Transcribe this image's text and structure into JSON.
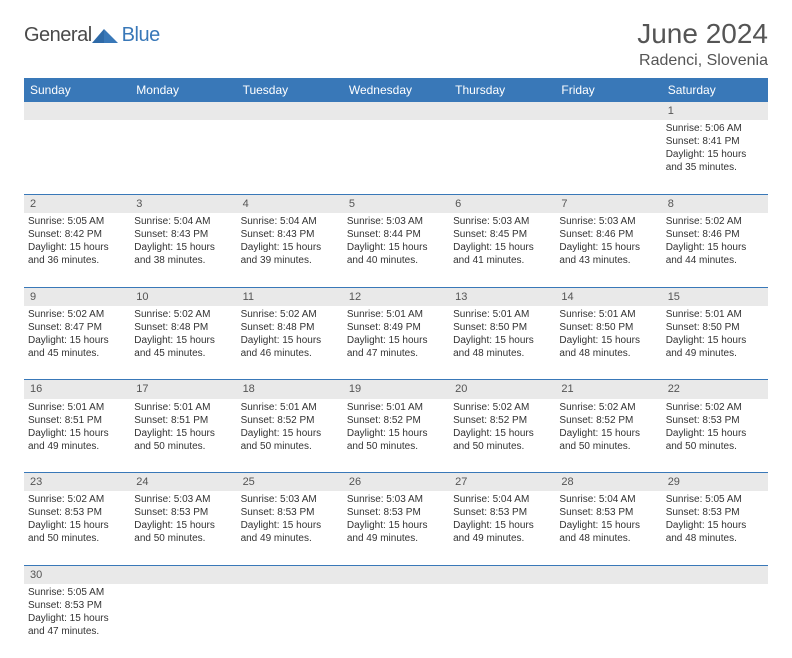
{
  "logo": {
    "text1": "General",
    "text2": "Blue"
  },
  "header": {
    "month_title": "June 2024",
    "location": "Radenci, Slovenia"
  },
  "colors": {
    "header_bg": "#3978b8",
    "header_text": "#ffffff",
    "daynum_bg": "#e9e9e9",
    "cell_border": "#3978b8",
    "body_text": "#333333",
    "title_text": "#555555"
  },
  "day_headers": [
    "Sunday",
    "Monday",
    "Tuesday",
    "Wednesday",
    "Thursday",
    "Friday",
    "Saturday"
  ],
  "weeks": [
    {
      "nums": [
        "",
        "",
        "",
        "",
        "",
        "",
        "1"
      ],
      "cells": [
        null,
        null,
        null,
        null,
        null,
        null,
        {
          "sunrise": "5:06 AM",
          "sunset": "8:41 PM",
          "day_h": 15,
          "day_m": 35
        }
      ]
    },
    {
      "nums": [
        "2",
        "3",
        "4",
        "5",
        "6",
        "7",
        "8"
      ],
      "cells": [
        {
          "sunrise": "5:05 AM",
          "sunset": "8:42 PM",
          "day_h": 15,
          "day_m": 36
        },
        {
          "sunrise": "5:04 AM",
          "sunset": "8:43 PM",
          "day_h": 15,
          "day_m": 38
        },
        {
          "sunrise": "5:04 AM",
          "sunset": "8:43 PM",
          "day_h": 15,
          "day_m": 39
        },
        {
          "sunrise": "5:03 AM",
          "sunset": "8:44 PM",
          "day_h": 15,
          "day_m": 40
        },
        {
          "sunrise": "5:03 AM",
          "sunset": "8:45 PM",
          "day_h": 15,
          "day_m": 41
        },
        {
          "sunrise": "5:03 AM",
          "sunset": "8:46 PM",
          "day_h": 15,
          "day_m": 43
        },
        {
          "sunrise": "5:02 AM",
          "sunset": "8:46 PM",
          "day_h": 15,
          "day_m": 44
        }
      ]
    },
    {
      "nums": [
        "9",
        "10",
        "11",
        "12",
        "13",
        "14",
        "15"
      ],
      "cells": [
        {
          "sunrise": "5:02 AM",
          "sunset": "8:47 PM",
          "day_h": 15,
          "day_m": 45
        },
        {
          "sunrise": "5:02 AM",
          "sunset": "8:48 PM",
          "day_h": 15,
          "day_m": 45
        },
        {
          "sunrise": "5:02 AM",
          "sunset": "8:48 PM",
          "day_h": 15,
          "day_m": 46
        },
        {
          "sunrise": "5:01 AM",
          "sunset": "8:49 PM",
          "day_h": 15,
          "day_m": 47
        },
        {
          "sunrise": "5:01 AM",
          "sunset": "8:50 PM",
          "day_h": 15,
          "day_m": 48
        },
        {
          "sunrise": "5:01 AM",
          "sunset": "8:50 PM",
          "day_h": 15,
          "day_m": 48
        },
        {
          "sunrise": "5:01 AM",
          "sunset": "8:50 PM",
          "day_h": 15,
          "day_m": 49
        }
      ]
    },
    {
      "nums": [
        "16",
        "17",
        "18",
        "19",
        "20",
        "21",
        "22"
      ],
      "cells": [
        {
          "sunrise": "5:01 AM",
          "sunset": "8:51 PM",
          "day_h": 15,
          "day_m": 49
        },
        {
          "sunrise": "5:01 AM",
          "sunset": "8:51 PM",
          "day_h": 15,
          "day_m": 50
        },
        {
          "sunrise": "5:01 AM",
          "sunset": "8:52 PM",
          "day_h": 15,
          "day_m": 50
        },
        {
          "sunrise": "5:01 AM",
          "sunset": "8:52 PM",
          "day_h": 15,
          "day_m": 50
        },
        {
          "sunrise": "5:02 AM",
          "sunset": "8:52 PM",
          "day_h": 15,
          "day_m": 50
        },
        {
          "sunrise": "5:02 AM",
          "sunset": "8:52 PM",
          "day_h": 15,
          "day_m": 50
        },
        {
          "sunrise": "5:02 AM",
          "sunset": "8:53 PM",
          "day_h": 15,
          "day_m": 50
        }
      ]
    },
    {
      "nums": [
        "23",
        "24",
        "25",
        "26",
        "27",
        "28",
        "29"
      ],
      "cells": [
        {
          "sunrise": "5:02 AM",
          "sunset": "8:53 PM",
          "day_h": 15,
          "day_m": 50
        },
        {
          "sunrise": "5:03 AM",
          "sunset": "8:53 PM",
          "day_h": 15,
          "day_m": 50
        },
        {
          "sunrise": "5:03 AM",
          "sunset": "8:53 PM",
          "day_h": 15,
          "day_m": 49
        },
        {
          "sunrise": "5:03 AM",
          "sunset": "8:53 PM",
          "day_h": 15,
          "day_m": 49
        },
        {
          "sunrise": "5:04 AM",
          "sunset": "8:53 PM",
          "day_h": 15,
          "day_m": 49
        },
        {
          "sunrise": "5:04 AM",
          "sunset": "8:53 PM",
          "day_h": 15,
          "day_m": 48
        },
        {
          "sunrise": "5:05 AM",
          "sunset": "8:53 PM",
          "day_h": 15,
          "day_m": 48
        }
      ]
    },
    {
      "nums": [
        "30",
        "",
        "",
        "",
        "",
        "",
        ""
      ],
      "cells": [
        {
          "sunrise": "5:05 AM",
          "sunset": "8:53 PM",
          "day_h": 15,
          "day_m": 47
        },
        null,
        null,
        null,
        null,
        null,
        null
      ],
      "last": true
    }
  ],
  "labels": {
    "sunrise": "Sunrise:",
    "sunset": "Sunset:",
    "daylight_prefix": "Daylight:",
    "hours_word": "hours",
    "and_word": "and",
    "minutes_word": "minutes."
  }
}
